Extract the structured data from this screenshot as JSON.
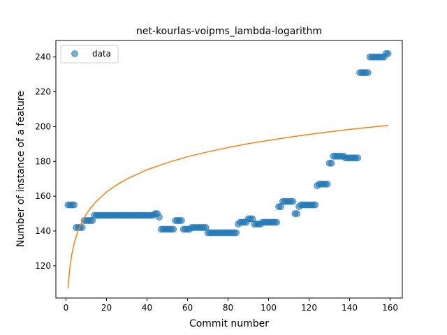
{
  "chart_data": {
    "type": "scatter",
    "title": "net-kourlas-voipms_lambda-logarithm",
    "xlabel": "Commit number",
    "ylabel": "Number of instance of a feature",
    "xlim": [
      -5,
      166
    ],
    "ylim": [
      101.5,
      249.5
    ],
    "xticks": [
      0,
      20,
      40,
      60,
      80,
      100,
      120,
      140,
      160
    ],
    "yticks": [
      120,
      140,
      160,
      180,
      200,
      220,
      240
    ],
    "grid": false,
    "legend": {
      "position": "top-left",
      "entries": [
        "data"
      ]
    },
    "colors": {
      "data": "#1f77b4",
      "fit": "#ff7f0e"
    },
    "series": [
      {
        "name": "data",
        "style": "markers",
        "x": [
          1,
          2,
          3,
          4,
          5,
          6,
          7,
          8,
          9,
          10,
          11,
          12,
          13,
          14,
          15,
          16,
          17,
          18,
          19,
          20,
          21,
          22,
          23,
          24,
          25,
          26,
          27,
          28,
          29,
          30,
          31,
          32,
          33,
          34,
          35,
          36,
          37,
          38,
          39,
          40,
          41,
          42,
          43,
          44,
          45,
          46,
          47,
          48,
          49,
          50,
          51,
          52,
          53,
          54,
          55,
          56,
          57,
          58,
          59,
          60,
          61,
          62,
          63,
          64,
          65,
          66,
          67,
          68,
          69,
          70,
          71,
          72,
          73,
          74,
          75,
          76,
          77,
          78,
          79,
          80,
          81,
          82,
          83,
          84,
          85,
          86,
          87,
          88,
          89,
          90,
          91,
          92,
          93,
          94,
          95,
          96,
          97,
          98,
          99,
          100,
          101,
          102,
          103,
          104,
          105,
          106,
          107,
          108,
          109,
          110,
          111,
          112,
          113,
          114,
          115,
          116,
          117,
          118,
          119,
          120,
          121,
          122,
          123,
          124,
          125,
          126,
          127,
          128,
          129,
          130,
          131,
          132,
          133,
          134,
          135,
          136,
          137,
          138,
          139,
          140,
          141,
          142,
          143,
          144,
          145,
          146,
          147,
          148,
          149,
          150,
          151,
          152,
          153,
          154,
          155,
          156,
          157,
          158,
          159
        ],
        "y": [
          155,
          155,
          155,
          155,
          142,
          142,
          142,
          142,
          146,
          146,
          146,
          146,
          146,
          149,
          149,
          149,
          149,
          149,
          149,
          149,
          149,
          149,
          149,
          149,
          149,
          149,
          149,
          149,
          149,
          149,
          149,
          149,
          149,
          149,
          149,
          149,
          149,
          149,
          149,
          149,
          149,
          149,
          149,
          150,
          150,
          148,
          141,
          141,
          141,
          141,
          141,
          141,
          141,
          146,
          146,
          146,
          146,
          141,
          141,
          141,
          141,
          142,
          142,
          142,
          142,
          142,
          142,
          142,
          142,
          139,
          139,
          139,
          139,
          139,
          139,
          139,
          139,
          139,
          139,
          139,
          139,
          139,
          139,
          139,
          144,
          145,
          145,
          145,
          145,
          147,
          147,
          147,
          144,
          144,
          144,
          144,
          145,
          145,
          145,
          145,
          145,
          145,
          145,
          145,
          154,
          154,
          157,
          157,
          157,
          157,
          157,
          157,
          150,
          150,
          154,
          155,
          155,
          155,
          155,
          155,
          155,
          155,
          155,
          166,
          167,
          167,
          167,
          167,
          167,
          179,
          179,
          183,
          183,
          183,
          183,
          183,
          183,
          182,
          182,
          182,
          182,
          182,
          182,
          182,
          231,
          231,
          231,
          231,
          231,
          240,
          240,
          240,
          240,
          240,
          240,
          240,
          240,
          242,
          242
        ]
      },
      {
        "name": "",
        "style": "line",
        "curve": "logarithmic",
        "x": [
          1,
          2,
          3,
          4,
          5,
          6,
          8,
          10,
          12,
          15,
          20,
          25,
          30,
          40,
          50,
          60,
          70,
          80,
          90,
          100,
          110,
          120,
          130,
          140,
          150,
          159
        ],
        "y": [
          107.2,
          120.0,
          127.4,
          132.7,
          136.8,
          140.2,
          145.5,
          149.6,
          153.0,
          157.1,
          162.4,
          166.5,
          169.9,
          175.2,
          179.3,
          182.7,
          185.5,
          188.0,
          190.2,
          192.1,
          193.9,
          195.5,
          197.0,
          198.4,
          199.6,
          200.7
        ]
      }
    ]
  }
}
